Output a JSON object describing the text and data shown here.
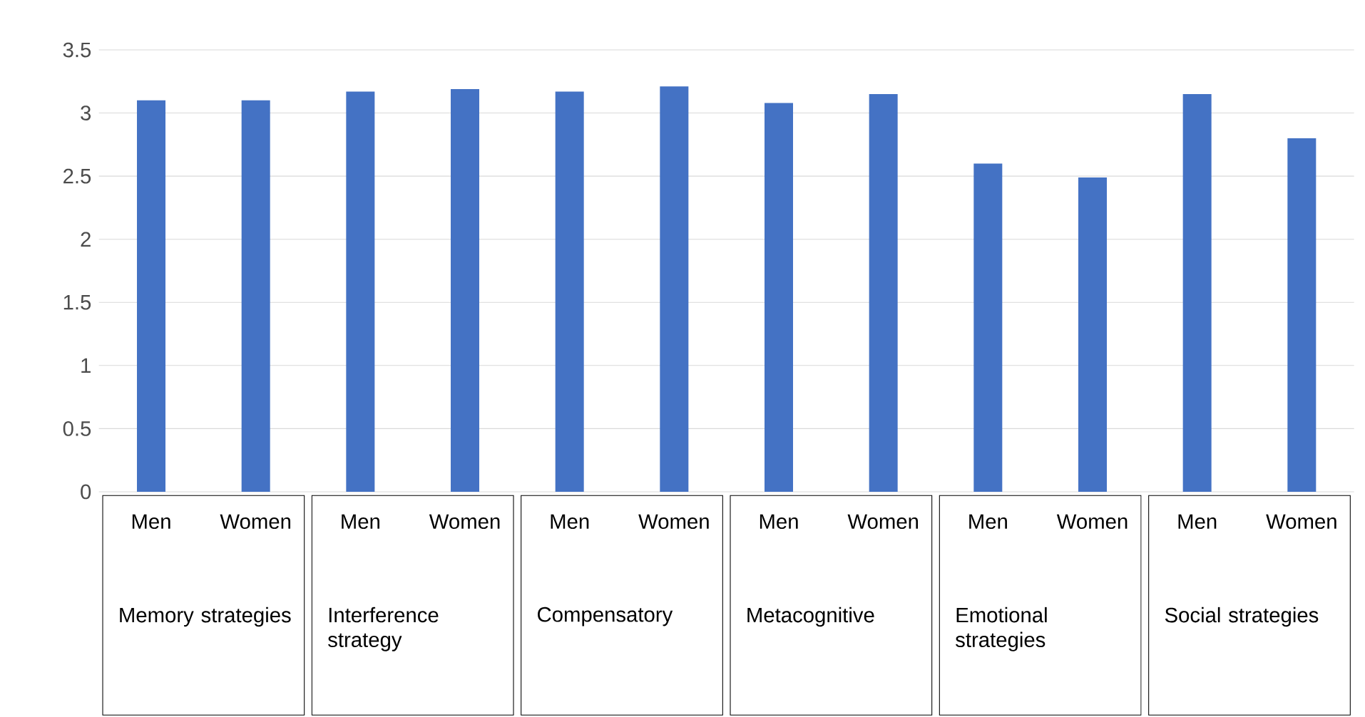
{
  "chart_data": {
    "type": "bar",
    "categories": [
      "Men",
      "Women",
      "Men",
      "Women",
      "Men",
      "Women",
      "Men",
      "Women",
      "Men",
      "Women",
      "Men",
      "Women"
    ],
    "values": [
      3.1,
      3.1,
      3.17,
      3.19,
      3.17,
      3.21,
      3.08,
      3.15,
      2.6,
      2.49,
      3.15,
      2.8
    ],
    "color": "#4472c4",
    "ylim": [
      0,
      3.5
    ],
    "yticks": [
      0,
      0.5,
      1,
      1.5,
      2,
      2.5,
      3,
      3.5
    ],
    "grid": "y",
    "annotations": [
      "Memory strategies",
      "Interference strategy",
      "Compensatory",
      "Metacognitive",
      "Emotional strategies",
      "Social strategies"
    ]
  }
}
